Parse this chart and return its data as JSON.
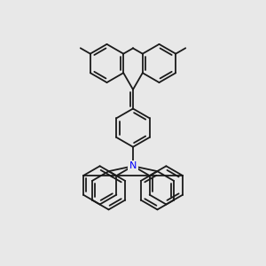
{
  "bg_color": "#e8e8e8",
  "line_color": "#1a1a1a",
  "N_color": "#0000ff",
  "lw": 1.3
}
